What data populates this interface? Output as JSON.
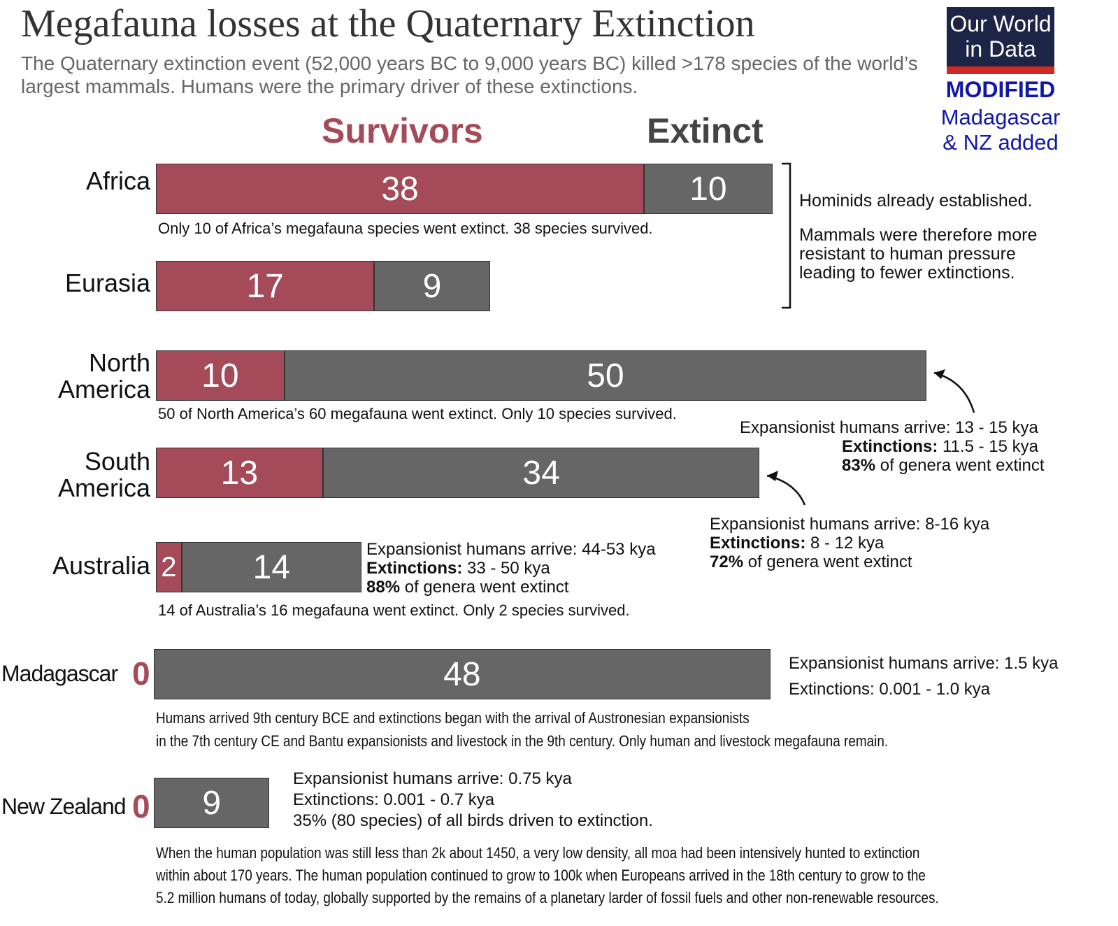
{
  "title": "Megafauna losses at the Quaternary Extinction",
  "subtitle": "The Quaternary extinction event (52,000 years BC to 9,000 years BC) killed >178 species of the world’s largest mammals. Humans were the primary driver of these extinctions.",
  "logo": {
    "line1": "Our World",
    "line2": "in Data",
    "modified": "MODIFIED",
    "note1": "Madagascar",
    "note2": "& NZ added"
  },
  "colors": {
    "survivors": "#a44a58",
    "extinct": "#666666"
  },
  "chart_data": {
    "type": "bar",
    "stacked": true,
    "orientation": "horizontal",
    "legend": [
      "Survivors",
      "Extinct"
    ],
    "categories": [
      "Africa",
      "Eurasia",
      "North America",
      "South America",
      "Australia",
      "Madagascar",
      "New Zealand"
    ],
    "series": [
      {
        "name": "Survivors",
        "values": [
          38,
          17,
          10,
          13,
          2,
          0,
          0
        ]
      },
      {
        "name": "Extinct",
        "values": [
          10,
          9,
          50,
          34,
          14,
          48,
          9
        ]
      }
    ]
  },
  "labels": {
    "africa": "Africa",
    "eurasia": "Eurasia",
    "na1": "North",
    "na2": "America",
    "sa1": "South",
    "sa2": "America",
    "australia": "Australia",
    "madagascar": "Madagascar",
    "nz": "New Zealand",
    "zero": "0"
  },
  "captions": {
    "africa": "Only 10 of Africa’s megafauna species went extinct. 38 species survived.",
    "na": "50 of North America’s 60 megafauna went extinct. Only 10 species survived.",
    "australia": "14 of Australia’s 16 megafauna went extinct. Only 2 species survived.",
    "madagascar1": "Humans arrived 9th century BCE and extinctions began with the arrival of Austronesian expansionists",
    "madagascar2": "in the 7th century CE and Bantu expansionists and livestock in the 9th century. Only human and livestock megafauna remain.",
    "nz1": "When the human population was still less than 2k about 1450, a very low density, all moa had been intensively hunted to extinction",
    "nz2": "within about 170 years. The human population continued to grow to 100k when Europeans arrived in the 18th century to  grow to the",
    "nz3": "5.2 million humans of today, globally supported by the remains of a planetary larder of fossil fuels and other non-renewable resources."
  },
  "notes": {
    "hominids1": "Hominids already established.",
    "hominids2": "Mammals were therefore more",
    "hominids3": "resistant to human pressure",
    "hominids4": "leading to fewer extinctions.",
    "na_arrive_k": "Expansionist humans arrive",
    "na_arrive_v": ": 13 - 15 kya",
    "na_ext_k": "Extinctions:",
    "na_ext_v": " 11.5 - 15 kya",
    "na_pct_k": "83%",
    "na_pct_v": " of genera went extinct",
    "sa_arrive": "Expansionist humans arrive: 8-16 kya",
    "sa_ext_k": "Extinctions:",
    "sa_ext_v": " 8 - 12 kya",
    "sa_pct_k": "72%",
    "sa_pct_v": " of genera went extinct",
    "au_arrive": "Expansionist humans arrive: 44-53 kya",
    "au_ext_k": "Extinctions:",
    "au_ext_v": " 33 - 50 kya",
    "au_pct_k": "88%",
    "au_pct_v": " of genera went extinct",
    "mg_arrive": "Expansionist humans arrive: 1.5 kya",
    "mg_ext": "Extinctions: 0.001 - 1.0 kya",
    "nz_arrive": "Expansionist humans arrive: 0.75 kya",
    "nz_ext": "Extinctions: 0.001 - 0.7 kya",
    "nz_pct": "35% (80 species) of all birds driven to extinction."
  }
}
